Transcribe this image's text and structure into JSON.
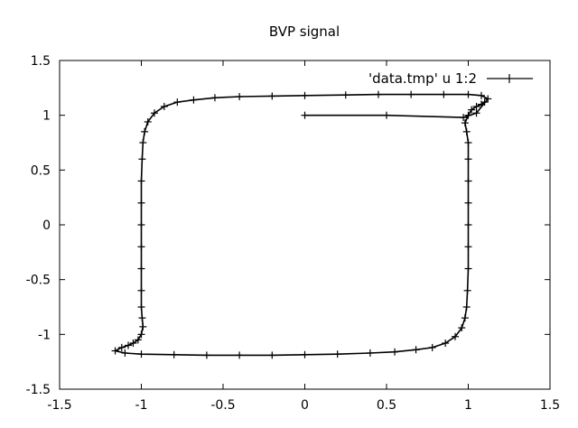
{
  "chart_data": {
    "type": "line",
    "title": "BVP signal",
    "xlabel": "",
    "ylabel": "",
    "xlim": [
      -1.5,
      1.5
    ],
    "ylim": [
      -1.5,
      1.5
    ],
    "xticks": [
      "-1.5",
      "-1",
      "-0.5",
      "0",
      "0.5",
      "1",
      "1.5"
    ],
    "yticks": [
      "1.5",
      "1",
      "0.5",
      "0",
      "-0.5",
      "-1",
      "-1.5"
    ],
    "grid": false,
    "legend_position": "top-right",
    "series": [
      {
        "name": "'data.tmp' u 1:2",
        "color": "#000000",
        "marker": "plus",
        "x": [
          0,
          0.5,
          0.97,
          1.05,
          1.12,
          1.08,
          1.0,
          0.85,
          0.65,
          0.45,
          0.25,
          0.0,
          -0.2,
          -0.4,
          -0.55,
          -0.68,
          -0.78,
          -0.86,
          -0.92,
          -0.96,
          -0.98,
          -0.99,
          -0.995,
          -1.0,
          -1.0,
          -1.0,
          -1.0,
          -1.0,
          -1.0,
          -1.0,
          -0.995,
          -0.99,
          -1.0,
          -1.02,
          -1.05,
          -1.08,
          -1.12,
          -1.16,
          -1.1,
          -1.0,
          -0.8,
          -0.6,
          -0.4,
          -0.2,
          0.0,
          0.2,
          0.4,
          0.55,
          0.68,
          0.78,
          0.86,
          0.92,
          0.96,
          0.98,
          0.99,
          0.995,
          1.0,
          1.0,
          1.0,
          1.0,
          1.0,
          1.0,
          1.0,
          0.99,
          0.98,
          1.0,
          1.02,
          1.05,
          1.08,
          1.1
        ],
        "y": [
          1.0,
          1.0,
          0.98,
          1.02,
          1.15,
          1.18,
          1.19,
          1.19,
          1.19,
          1.19,
          1.185,
          1.18,
          1.175,
          1.17,
          1.16,
          1.14,
          1.12,
          1.08,
          1.02,
          0.94,
          0.85,
          0.75,
          0.6,
          0.4,
          0.2,
          0.0,
          -0.2,
          -0.4,
          -0.6,
          -0.75,
          -0.85,
          -0.93,
          -1.0,
          -1.05,
          -1.08,
          -1.1,
          -1.12,
          -1.15,
          -1.17,
          -1.18,
          -1.185,
          -1.19,
          -1.19,
          -1.19,
          -1.185,
          -1.18,
          -1.17,
          -1.16,
          -1.14,
          -1.12,
          -1.08,
          -1.02,
          -0.94,
          -0.85,
          -0.75,
          -0.6,
          -0.4,
          -0.2,
          0.0,
          0.2,
          0.4,
          0.6,
          0.75,
          0.85,
          0.93,
          1.0,
          1.05,
          1.08,
          1.1,
          1.12
        ]
      }
    ]
  }
}
